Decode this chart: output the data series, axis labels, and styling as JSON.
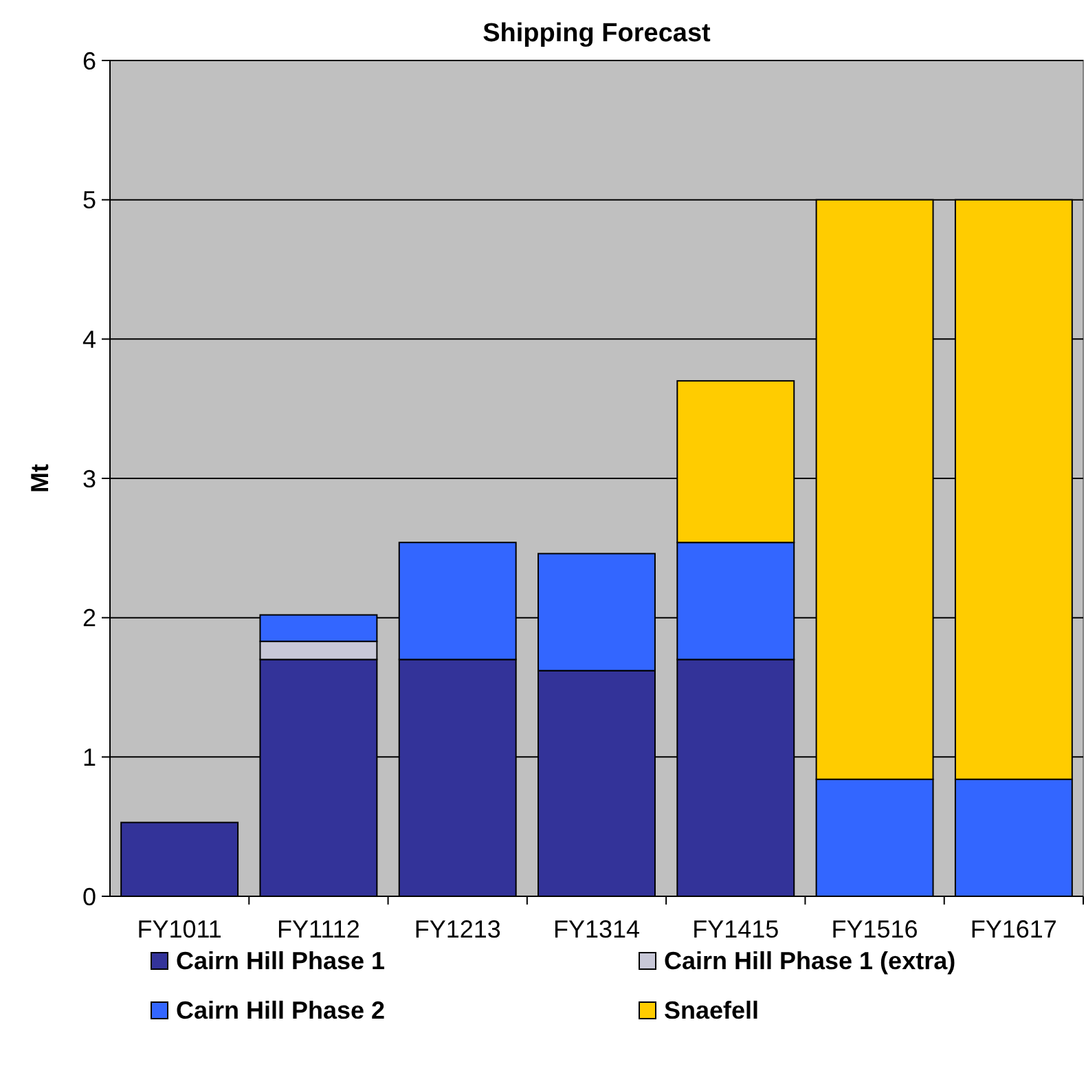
{
  "chart_data": {
    "type": "bar",
    "title": "Shipping Forecast",
    "ylabel": "Mt",
    "stacked": true,
    "categories": [
      "FY1011",
      "FY1112",
      "FY1213",
      "FY1314",
      "FY1415",
      "FY1516",
      "FY1617"
    ],
    "series": [
      {
        "name": "Cairn Hill Phase 1",
        "color": "#333399",
        "values": [
          0.53,
          1.7,
          1.7,
          1.62,
          1.7,
          null,
          null
        ]
      },
      {
        "name": "Cairn Hill Phase 1 (extra)",
        "color": "#c8c8d8",
        "values": [
          null,
          0.13,
          null,
          null,
          null,
          null,
          null
        ]
      },
      {
        "name": "Cairn Hill Phase 2",
        "color": "#3366ff",
        "values": [
          null,
          0.19,
          0.84,
          0.84,
          0.84,
          0.84,
          0.84
        ]
      },
      {
        "name": "Snaefell",
        "color": "#ffcc00",
        "values": [
          null,
          null,
          null,
          null,
          1.16,
          4.16,
          4.16
        ]
      }
    ],
    "ylim": [
      0,
      6
    ],
    "yticks": [
      0,
      1,
      2,
      3,
      4,
      5,
      6
    ],
    "grid": "y",
    "legend": "bottom"
  }
}
